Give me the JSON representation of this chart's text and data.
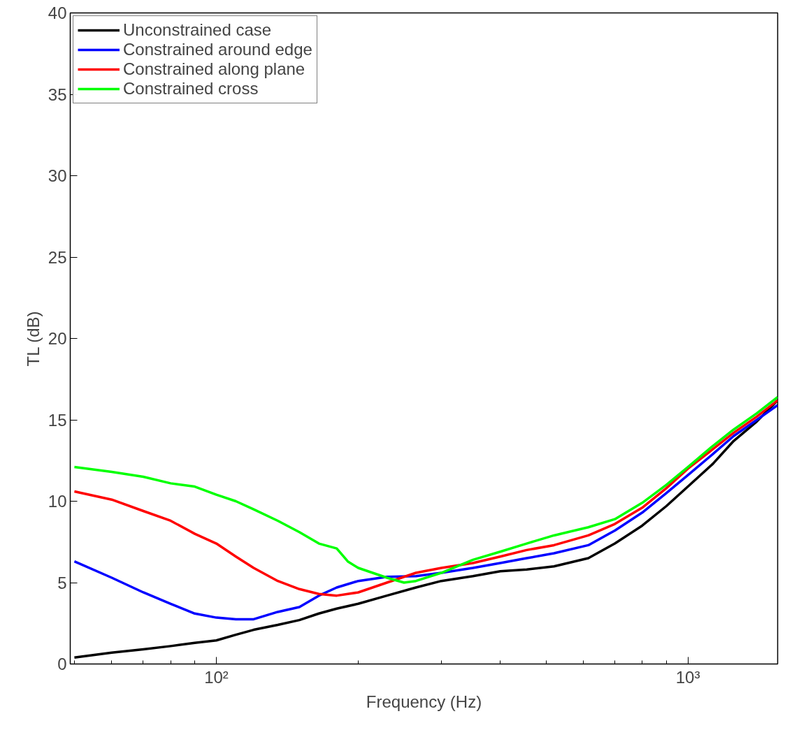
{
  "chart_data": {
    "type": "line",
    "xlabel": "Frequency (Hz)",
    "ylabel": "TL (dB)",
    "log": "x",
    "grid": false,
    "legend": "top left",
    "line_style": "solid",
    "marker": "none",
    "x": [
      50,
      60,
      70,
      80,
      90,
      100,
      110,
      120,
      135,
      150,
      165,
      180,
      200,
      230,
      265,
      300,
      350,
      400,
      455,
      520,
      615,
      700,
      800,
      900,
      1000,
      1130,
      1250,
      1400,
      1550
    ],
    "xlim": [
      49,
      1550
    ],
    "ylim": [
      0,
      40
    ],
    "xticks": [
      {
        "value": 50,
        "label": null
      },
      {
        "value": 60,
        "label": null
      },
      {
        "value": 70,
        "label": null
      },
      {
        "value": 80,
        "label": null
      },
      {
        "value": 90,
        "label": null
      },
      {
        "value": 100,
        "label": "10²"
      },
      {
        "value": 200,
        "label": null
      },
      {
        "value": 300,
        "label": null
      },
      {
        "value": 400,
        "label": null
      },
      {
        "value": 500,
        "label": null
      },
      {
        "value": 600,
        "label": null
      },
      {
        "value": 700,
        "label": null
      },
      {
        "value": 800,
        "label": null
      },
      {
        "value": 900,
        "label": null
      },
      {
        "value": 1000,
        "label": "10³"
      }
    ],
    "yticks": [
      0,
      5,
      10,
      15,
      20,
      25,
      30,
      35,
      40
    ],
    "series": [
      {
        "name": "Unconstrained case",
        "color": "#000000",
        "values": [
          0.4,
          0.7,
          0.9,
          1.1,
          1.3,
          1.45,
          1.8,
          2.1,
          2.4,
          2.7,
          3.1,
          3.4,
          3.7,
          4.2,
          4.7,
          5.1,
          5.4,
          5.7,
          5.8,
          6.0,
          6.5,
          7.4,
          8.5,
          9.7,
          10.9,
          12.3,
          13.7,
          14.9,
          16.2
        ]
      },
      {
        "name": "Constrained around edge",
        "color": "#0000ff",
        "values": [
          6.3,
          5.3,
          4.4,
          3.7,
          3.1,
          2.85,
          2.75,
          2.75,
          3.2,
          3.5,
          4.2,
          4.7,
          5.1,
          5.35,
          5.4,
          5.6,
          5.9,
          6.2,
          6.5,
          6.8,
          7.3,
          8.2,
          9.3,
          10.5,
          11.6,
          12.9,
          14.0,
          15.0,
          15.9
        ]
      },
      {
        "name": "Constrained along plane",
        "color": "#ff0000",
        "values": [
          10.6,
          10.1,
          9.4,
          8.8,
          8.0,
          7.4,
          6.6,
          5.9,
          5.1,
          4.6,
          4.3,
          4.2,
          4.4,
          5.0,
          5.6,
          5.9,
          6.2,
          6.6,
          7.0,
          7.3,
          7.9,
          8.6,
          9.6,
          10.8,
          12.0,
          13.2,
          14.2,
          15.2,
          16.2
        ]
      },
      {
        "name": "Constrained cross",
        "color": "#00ff00",
        "x": [
          50,
          60,
          70,
          80,
          90,
          100,
          110,
          120,
          135,
          150,
          165,
          180,
          190,
          200,
          230,
          250,
          265,
          300,
          350,
          400,
          455,
          520,
          615,
          700,
          800,
          900,
          1000,
          1130,
          1250,
          1400,
          1550
        ],
        "values": [
          12.1,
          11.8,
          11.5,
          11.1,
          10.9,
          10.4,
          10.0,
          9.5,
          8.8,
          8.1,
          7.4,
          7.1,
          6.3,
          5.9,
          5.3,
          5.0,
          5.1,
          5.6,
          6.4,
          6.9,
          7.4,
          7.9,
          8.4,
          8.9,
          9.9,
          11.0,
          12.1,
          13.4,
          14.4,
          15.4,
          16.4
        ]
      }
    ]
  }
}
